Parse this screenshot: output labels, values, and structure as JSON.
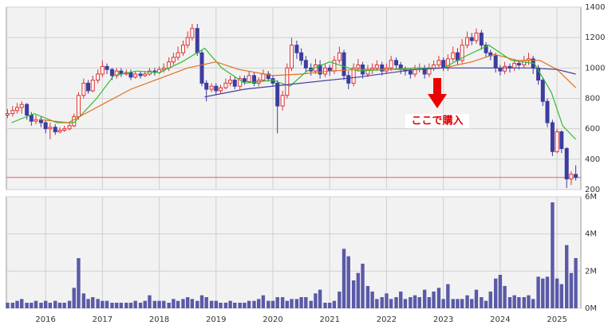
{
  "chart_data": {
    "type": "candlestick",
    "xlim": [
      2015.31,
      2025.42
    ],
    "xticks": [
      2016,
      2017,
      2018,
      2019,
      2020,
      2021,
      2022,
      2023,
      2024,
      2025
    ],
    "ylim": [
      200,
      1400
    ],
    "yticks": [
      200,
      400,
      600,
      800,
      1000,
      1200,
      1400
    ],
    "grid": true,
    "up_color": "#e03030",
    "down_color": "#3c3ca0",
    "x": [
      2015.33,
      2015.42,
      2015.5,
      2015.58,
      2015.67,
      2015.75,
      2015.83,
      2015.92,
      2016.0,
      2016.08,
      2016.17,
      2016.25,
      2016.33,
      2016.42,
      2016.5,
      2016.58,
      2016.67,
      2016.75,
      2016.83,
      2016.92,
      2017.0,
      2017.08,
      2017.17,
      2017.25,
      2017.33,
      2017.42,
      2017.5,
      2017.58,
      2017.67,
      2017.75,
      2017.83,
      2017.92,
      2018.0,
      2018.08,
      2018.17,
      2018.25,
      2018.33,
      2018.42,
      2018.5,
      2018.58,
      2018.67,
      2018.75,
      2018.83,
      2018.92,
      2019.0,
      2019.08,
      2019.17,
      2019.25,
      2019.33,
      2019.42,
      2019.5,
      2019.58,
      2019.67,
      2019.75,
      2019.83,
      2019.92,
      2020.0,
      2020.08,
      2020.17,
      2020.25,
      2020.33,
      2020.42,
      2020.5,
      2020.58,
      2020.67,
      2020.75,
      2020.83,
      2020.92,
      2021.0,
      2021.08,
      2021.17,
      2021.25,
      2021.33,
      2021.42,
      2021.5,
      2021.58,
      2021.67,
      2021.75,
      2021.83,
      2021.92,
      2022.0,
      2022.08,
      2022.17,
      2022.25,
      2022.33,
      2022.42,
      2022.5,
      2022.58,
      2022.67,
      2022.75,
      2022.83,
      2022.92,
      2023.0,
      2023.08,
      2023.17,
      2023.25,
      2023.33,
      2023.42,
      2023.5,
      2023.58,
      2023.67,
      2023.75,
      2023.83,
      2023.92,
      2024.0,
      2024.08,
      2024.17,
      2024.25,
      2024.33,
      2024.42,
      2024.5,
      2024.58,
      2024.67,
      2024.75,
      2024.83,
      2024.92,
      2025.0,
      2025.08,
      2025.17,
      2025.25,
      2025.33
    ],
    "ohlc": [
      [
        690,
        730,
        670,
        700
      ],
      [
        700,
        750,
        680,
        720
      ],
      [
        720,
        770,
        700,
        740
      ],
      [
        740,
        780,
        700,
        760
      ],
      [
        760,
        770,
        660,
        690
      ],
      [
        690,
        710,
        620,
        650
      ],
      [
        650,
        690,
        630,
        660
      ],
      [
        660,
        680,
        610,
        640
      ],
      [
        640,
        660,
        570,
        600
      ],
      [
        600,
        640,
        530,
        610
      ],
      [
        610,
        630,
        560,
        580
      ],
      [
        580,
        610,
        570,
        590
      ],
      [
        590,
        620,
        580,
        600
      ],
      [
        600,
        640,
        590,
        620
      ],
      [
        620,
        700,
        610,
        680
      ],
      [
        680,
        840,
        660,
        820
      ],
      [
        820,
        930,
        800,
        900
      ],
      [
        900,
        920,
        830,
        850
      ],
      [
        850,
        950,
        840,
        920
      ],
      [
        920,
        990,
        900,
        960
      ],
      [
        960,
        1050,
        940,
        1010
      ],
      [
        1010,
        1030,
        960,
        990
      ],
      [
        990,
        1000,
        920,
        950
      ],
      [
        950,
        1000,
        930,
        980
      ],
      [
        980,
        1000,
        940,
        960
      ],
      [
        960,
        990,
        950,
        970
      ],
      [
        970,
        990,
        920,
        940
      ],
      [
        940,
        980,
        930,
        960
      ],
      [
        960,
        980,
        930,
        950
      ],
      [
        950,
        980,
        940,
        960
      ],
      [
        960,
        1000,
        950,
        980
      ],
      [
        980,
        1000,
        950,
        970
      ],
      [
        970,
        1010,
        960,
        990
      ],
      [
        990,
        1030,
        970,
        1000
      ],
      [
        1000,
        1070,
        980,
        1040
      ],
      [
        1040,
        1100,
        1020,
        1070
      ],
      [
        1070,
        1140,
        1050,
        1100
      ],
      [
        1100,
        1180,
        1080,
        1150
      ],
      [
        1150,
        1240,
        1130,
        1200
      ],
      [
        1200,
        1290,
        1180,
        1260
      ],
      [
        1260,
        1290,
        1080,
        1100
      ],
      [
        1100,
        1120,
        880,
        900
      ],
      [
        900,
        920,
        780,
        860
      ],
      [
        860,
        900,
        840,
        880
      ],
      [
        880,
        900,
        820,
        850
      ],
      [
        850,
        890,
        830,
        870
      ],
      [
        870,
        930,
        860,
        900
      ],
      [
        900,
        950,
        880,
        920
      ],
      [
        920,
        940,
        860,
        880
      ],
      [
        880,
        950,
        860,
        930
      ],
      [
        930,
        950,
        890,
        910
      ],
      [
        910,
        980,
        900,
        950
      ],
      [
        950,
        970,
        880,
        900
      ],
      [
        900,
        940,
        880,
        920
      ],
      [
        920,
        990,
        910,
        960
      ],
      [
        960,
        980,
        910,
        930
      ],
      [
        930,
        950,
        880,
        900
      ],
      [
        900,
        920,
        570,
        750
      ],
      [
        750,
        850,
        720,
        820
      ],
      [
        820,
        1030,
        800,
        1000
      ],
      [
        1000,
        1200,
        980,
        1150
      ],
      [
        1150,
        1180,
        1060,
        1100
      ],
      [
        1100,
        1130,
        1020,
        1050
      ],
      [
        1050,
        1080,
        970,
        1000
      ],
      [
        1000,
        1030,
        950,
        980
      ],
      [
        980,
        1060,
        960,
        1020
      ],
      [
        1020,
        1050,
        930,
        960
      ],
      [
        960,
        1030,
        940,
        1000
      ],
      [
        1000,
        1020,
        950,
        980
      ],
      [
        980,
        1080,
        960,
        1050
      ],
      [
        1050,
        1140,
        1030,
        1100
      ],
      [
        1100,
        1120,
        920,
        950
      ],
      [
        950,
        980,
        860,
        900
      ],
      [
        900,
        1030,
        880,
        1000
      ],
      [
        1000,
        1060,
        980,
        1020
      ],
      [
        1020,
        1040,
        930,
        960
      ],
      [
        960,
        1020,
        940,
        990
      ],
      [
        990,
        1030,
        960,
        1000
      ],
      [
        1000,
        1050,
        980,
        1020
      ],
      [
        1020,
        1040,
        950,
        980
      ],
      [
        980,
        1030,
        960,
        1000
      ],
      [
        1000,
        1080,
        980,
        1050
      ],
      [
        1050,
        1070,
        990,
        1020
      ],
      [
        1020,
        1040,
        960,
        990
      ],
      [
        990,
        1010,
        950,
        980
      ],
      [
        980,
        1000,
        930,
        960
      ],
      [
        960,
        1020,
        940,
        990
      ],
      [
        990,
        1030,
        970,
        1000
      ],
      [
        1000,
        1020,
        930,
        960
      ],
      [
        960,
        1030,
        940,
        1000
      ],
      [
        1000,
        1050,
        980,
        1020
      ],
      [
        1020,
        1080,
        1000,
        1050
      ],
      [
        1050,
        1070,
        980,
        1000
      ],
      [
        1000,
        1090,
        980,
        1060
      ],
      [
        1060,
        1140,
        1040,
        1100
      ],
      [
        1100,
        1130,
        1020,
        1050
      ],
      [
        1050,
        1190,
        1030,
        1150
      ],
      [
        1150,
        1240,
        1130,
        1200
      ],
      [
        1200,
        1230,
        1150,
        1180
      ],
      [
        1180,
        1260,
        1160,
        1230
      ],
      [
        1230,
        1250,
        1120,
        1150
      ],
      [
        1150,
        1170,
        1070,
        1100
      ],
      [
        1100,
        1120,
        1050,
        1080
      ],
      [
        1080,
        1100,
        970,
        1000
      ],
      [
        1000,
        1020,
        950,
        980
      ],
      [
        980,
        1040,
        960,
        1010
      ],
      [
        1010,
        1030,
        970,
        1000
      ],
      [
        1000,
        1060,
        980,
        1030
      ],
      [
        1030,
        1050,
        990,
        1020
      ],
      [
        1020,
        1080,
        1000,
        1050
      ],
      [
        1050,
        1100,
        1020,
        1060
      ],
      [
        1060,
        1080,
        960,
        1000
      ],
      [
        1000,
        1020,
        890,
        920
      ],
      [
        920,
        940,
        750,
        780
      ],
      [
        780,
        800,
        610,
        640
      ],
      [
        640,
        660,
        420,
        450
      ],
      [
        450,
        600,
        440,
        580
      ],
      [
        580,
        590,
        440,
        470
      ],
      [
        470,
        480,
        210,
        270
      ],
      [
        270,
        320,
        230,
        300
      ],
      [
        300,
        360,
        260,
        280
      ]
    ],
    "moving_averages": [
      {
        "color": "#33bb33",
        "x": [
          2015.4,
          2015.8,
          2016.2,
          2016.5,
          2016.9,
          2017.2,
          2017.6,
          2018.0,
          2018.4,
          2018.8,
          2019.1,
          2019.5,
          2020.0,
          2020.3,
          2020.6,
          2021.0,
          2021.5,
          2022.0,
          2022.5,
          2023.0,
          2023.4,
          2023.8,
          2024.2,
          2024.6,
          2024.9,
          2025.1,
          2025.33
        ],
        "values": [
          640,
          700,
          640,
          640,
          800,
          950,
          980,
          970,
          1040,
          1130,
          1000,
          900,
          920,
          880,
          980,
          1040,
          980,
          990,
          1000,
          1000,
          1080,
          1150,
          1050,
          1030,
          840,
          620,
          530
        ]
      },
      {
        "color": "#e07020",
        "x": [
          2015.9,
          2016.4,
          2016.9,
          2017.5,
          2018.0,
          2018.5,
          2019.0,
          2019.4,
          2020.0,
          2020.5,
          2021.0,
          2021.5,
          2022.0,
          2022.5,
          2023.0,
          2023.5,
          2023.9,
          2024.3,
          2024.7,
          2025.0,
          2025.33
        ],
        "values": [
          660,
          640,
          740,
          860,
          930,
          1000,
          1040,
          990,
          950,
          960,
          980,
          990,
          990,
          990,
          1000,
          1040,
          1090,
          1050,
          1050,
          990,
          870
        ]
      },
      {
        "color": "#4040a0",
        "x": [
          2018.8,
          2019.5,
          2020.5,
          2021.5,
          2022.5,
          2023.0,
          2023.5,
          2024.0,
          2024.5,
          2025.0,
          2025.33
        ],
        "values": [
          810,
          860,
          900,
          940,
          990,
          1000,
          1000,
          1000,
          1000,
          990,
          960
        ]
      }
    ],
    "hline": {
      "value": 280,
      "color": "#e06060"
    },
    "annotation": "ここで購入",
    "volume": {
      "color": "#5a5aa8",
      "ylim": [
        0,
        6
      ],
      "yticks": [
        {
          "value": 0,
          "label": "0M"
        },
        {
          "value": 2,
          "label": "2M"
        },
        {
          "value": 4,
          "label": "4M"
        },
        {
          "value": 6,
          "label": "6M"
        }
      ],
      "values": [
        0.3,
        0.3,
        0.4,
        0.5,
        0.3,
        0.3,
        0.4,
        0.3,
        0.4,
        0.3,
        0.4,
        0.3,
        0.3,
        0.4,
        1.1,
        2.7,
        0.8,
        0.5,
        0.6,
        0.5,
        0.4,
        0.4,
        0.3,
        0.3,
        0.3,
        0.3,
        0.3,
        0.4,
        0.3,
        0.4,
        0.7,
        0.4,
        0.4,
        0.4,
        0.3,
        0.5,
        0.4,
        0.5,
        0.6,
        0.5,
        0.4,
        0.7,
        0.6,
        0.4,
        0.4,
        0.3,
        0.3,
        0.4,
        0.3,
        0.3,
        0.3,
        0.4,
        0.4,
        0.5,
        0.7,
        0.4,
        0.4,
        0.6,
        0.6,
        0.4,
        0.5,
        0.5,
        0.6,
        0.6,
        0.4,
        0.8,
        1.0,
        0.3,
        0.3,
        0.4,
        0.9,
        3.2,
        2.8,
        1.5,
        1.9,
        2.4,
        1.2,
        0.9,
        0.5,
        0.6,
        0.8,
        0.5,
        0.6,
        0.9,
        0.5,
        0.6,
        0.7,
        0.6,
        1.0,
        0.6,
        0.9,
        1.1,
        0.5,
        1.3,
        0.5,
        0.5,
        0.5,
        0.7,
        0.5,
        1.0,
        0.6,
        0.4,
        0.9,
        1.6,
        1.8,
        1.2,
        0.6,
        0.7,
        0.6,
        0.6,
        0.7,
        0.5,
        1.7,
        1.6,
        1.7,
        5.7,
        1.6,
        1.3,
        3.4,
        1.9,
        2.7
      ]
    }
  }
}
